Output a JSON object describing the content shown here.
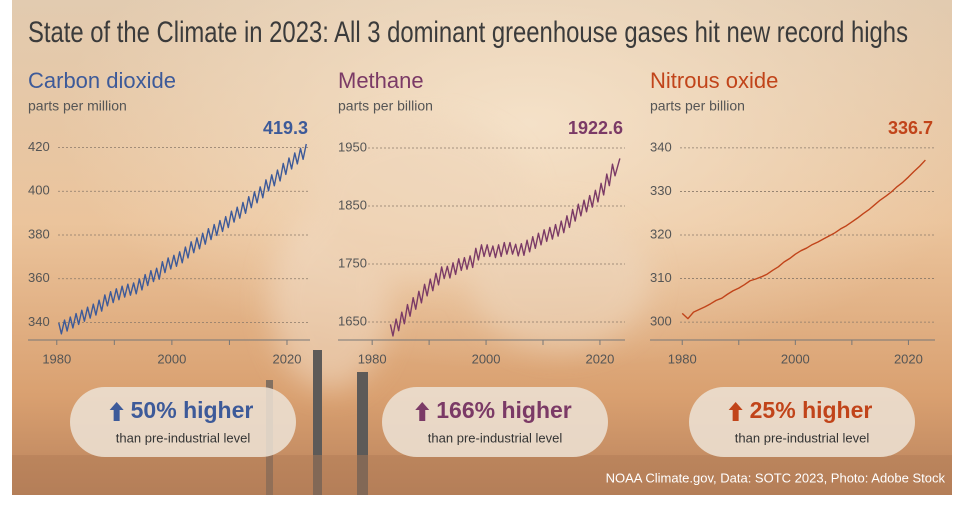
{
  "title": "State of the Climate in 2023: All 3 dominant greenhouse gases hit new record highs",
  "credit": "NOAA Climate.gov, Data: SOTC 2023, Photo: Adobe Stock",
  "chart_data": [
    {
      "type": "line",
      "title": "Carbon dioxide",
      "subtitle": "parts per million",
      "color": "#3d5a99",
      "latest_value": 419.3,
      "callout": "50% higher",
      "callout_note": "than pre-industrial level",
      "x": [
        1980.35,
        1980.8,
        1981.35,
        1981.8,
        1982.35,
        1982.8,
        1983.35,
        1983.8,
        1984.35,
        1984.8,
        1985.35,
        1985.8,
        1986.35,
        1986.8,
        1987.35,
        1987.8,
        1988.35,
        1988.8,
        1989.35,
        1989.8,
        1990.35,
        1990.8,
        1991.35,
        1991.8,
        1992.35,
        1992.8,
        1993.35,
        1993.8,
        1994.35,
        1994.8,
        1995.35,
        1995.8,
        1996.35,
        1996.8,
        1997.35,
        1997.8,
        1998.35,
        1998.8,
        1999.35,
        1999.8,
        2000.35,
        2000.8,
        2001.35,
        2001.8,
        2002.35,
        2002.8,
        2003.35,
        2003.8,
        2004.35,
        2004.8,
        2005.35,
        2005.8,
        2006.35,
        2006.8,
        2007.35,
        2007.8,
        2008.35,
        2008.8,
        2009.35,
        2009.8,
        2010.35,
        2010.8,
        2011.35,
        2011.8,
        2012.35,
        2012.8,
        2013.35,
        2013.8,
        2014.35,
        2014.8,
        2015.35,
        2015.8,
        2016.35,
        2016.8,
        2017.35,
        2017.8,
        2018.35,
        2018.8,
        2019.35,
        2019.8,
        2020.35,
        2020.8,
        2021.35,
        2021.8,
        2022.35,
        2022.8,
        2023.35
      ],
      "values": [
        339.8,
        334.8,
        341.1,
        336.1,
        342.5,
        337.5,
        344.1,
        339.1,
        345.6,
        340.6,
        347.0,
        342.0,
        348.4,
        343.4,
        350.2,
        345.2,
        352.6,
        347.6,
        354.1,
        349.1,
        355.4,
        350.4,
        356.6,
        351.6,
        357.5,
        352.5,
        358.1,
        353.1,
        359.9,
        354.9,
        361.9,
        356.9,
        363.7,
        358.7,
        364.8,
        359.8,
        367.8,
        362.8,
        369.5,
        364.5,
        370.7,
        365.7,
        372.3,
        367.3,
        374.5,
        369.5,
        376.9,
        371.9,
        378.7,
        373.7,
        380.8,
        375.8,
        382.9,
        377.9,
        384.8,
        379.8,
        386.6,
        381.6,
        388.4,
        383.4,
        390.9,
        385.9,
        392.7,
        387.7,
        394.9,
        389.9,
        397.5,
        392.5,
        399.7,
        394.7,
        402.0,
        397.0,
        405.2,
        400.2,
        407.5,
        402.5,
        409.7,
        404.7,
        412.7,
        407.7,
        415.2,
        410.2,
        417.5,
        412.5,
        419.6,
        414.6,
        421.6
      ],
      "xlim": [
        1975,
        2024
      ],
      "xticks": [
        1980,
        2000,
        2020
      ],
      "xminorticks": [
        1990,
        2010
      ],
      "ylim": [
        332,
        428
      ],
      "yticks": [
        340,
        360,
        380,
        400,
        420
      ],
      "grid": true
    },
    {
      "type": "line",
      "title": "Methane",
      "subtitle": "parts per billion",
      "color": "#7b3a66",
      "latest_value": 1922.6,
      "callout": "166% higher",
      "callout_note": "than pre-industrial level",
      "x": [
        1983.2,
        1983.65,
        1984.2,
        1984.65,
        1985.2,
        1985.65,
        1986.2,
        1986.65,
        1987.2,
        1987.65,
        1988.2,
        1988.65,
        1989.2,
        1989.65,
        1990.2,
        1990.65,
        1991.2,
        1991.65,
        1992.2,
        1992.65,
        1993.2,
        1993.65,
        1994.2,
        1994.65,
        1995.2,
        1995.65,
        1996.2,
        1996.65,
        1997.2,
        1997.65,
        1998.2,
        1998.65,
        1999.2,
        1999.65,
        2000.2,
        2000.65,
        2001.2,
        2001.65,
        2002.2,
        2002.65,
        2003.2,
        2003.65,
        2004.2,
        2004.65,
        2005.2,
        2005.65,
        2006.2,
        2006.65,
        2007.2,
        2007.65,
        2008.2,
        2008.65,
        2009.2,
        2009.65,
        2010.2,
        2010.65,
        2011.2,
        2011.65,
        2012.2,
        2012.65,
        2013.2,
        2013.65,
        2014.2,
        2014.65,
        2015.2,
        2015.65,
        2016.2,
        2016.65,
        2017.2,
        2017.65,
        2018.2,
        2018.65,
        2019.2,
        2019.65,
        2020.2,
        2020.65,
        2021.2,
        2021.65,
        2022.2,
        2022.65,
        2023.5
      ],
      "values": [
        1646,
        1626,
        1655,
        1635,
        1667,
        1647,
        1680,
        1660,
        1692,
        1672,
        1703,
        1683,
        1715,
        1695,
        1724,
        1704,
        1734,
        1714,
        1745,
        1725,
        1746,
        1726,
        1752,
        1732,
        1759,
        1739,
        1761,
        1741,
        1764,
        1744,
        1777,
        1757,
        1783,
        1763,
        1783,
        1763,
        1781,
        1761,
        1783,
        1763,
        1787,
        1767,
        1787,
        1767,
        1784,
        1764,
        1785,
        1765,
        1791,
        1771,
        1797,
        1777,
        1803,
        1783,
        1809,
        1789,
        1813,
        1793,
        1818,
        1798,
        1824,
        1804,
        1833,
        1813,
        1844,
        1824,
        1853,
        1833,
        1860,
        1840,
        1868,
        1848,
        1877,
        1857,
        1889,
        1869,
        1905,
        1885,
        1922,
        1902,
        1932
      ],
      "xlim": [
        1974,
        2024.4
      ],
      "xticks": [
        1980,
        2000,
        2020
      ],
      "xminorticks": [
        1990,
        2010
      ],
      "ylim": [
        1619,
        1981
      ],
      "yticks": [
        1650,
        1750,
        1850,
        1950
      ],
      "grid": true
    },
    {
      "type": "line",
      "title": "Nitrous oxide",
      "subtitle": "parts per billion",
      "color": "#c1441a",
      "latest_value": 336.7,
      "callout": "25% higher",
      "callout_note": "than pre-industrial level",
      "x": [
        1980,
        1981,
        1982,
        1983,
        1984,
        1985,
        1986,
        1987,
        1988,
        1989,
        1990,
        1991,
        1992,
        1993,
        1994,
        1995,
        1996,
        1997,
        1998,
        1999,
        2000,
        2001,
        2002,
        2003,
        2004,
        2005,
        2006,
        2007,
        2008,
        2009,
        2010,
        2011,
        2012,
        2013,
        2014,
        2015,
        2016,
        2017,
        2018,
        2019,
        2020,
        2021,
        2022,
        2023
      ],
      "values": [
        302.0,
        300.8,
        302.3,
        302.9,
        303.5,
        304.2,
        305.0,
        305.5,
        306.4,
        307.2,
        307.8,
        308.6,
        309.5,
        309.9,
        310.4,
        311.0,
        311.9,
        312.7,
        313.8,
        314.6,
        315.6,
        316.4,
        317.0,
        317.8,
        318.4,
        319.1,
        319.8,
        320.5,
        321.4,
        322.1,
        323.0,
        323.9,
        324.9,
        325.8,
        326.9,
        328.0,
        328.9,
        329.9,
        331.1,
        332.1,
        333.3,
        334.6,
        335.8,
        337.2
      ],
      "xlim": [
        1974.3,
        2024.7
      ],
      "xticks": [
        1980,
        2000,
        2020
      ],
      "xminorticks": [
        1990,
        2010
      ],
      "ylim": [
        295.9,
        344.1
      ],
      "yticks": [
        300,
        310,
        320,
        330,
        340
      ],
      "grid": true
    }
  ]
}
